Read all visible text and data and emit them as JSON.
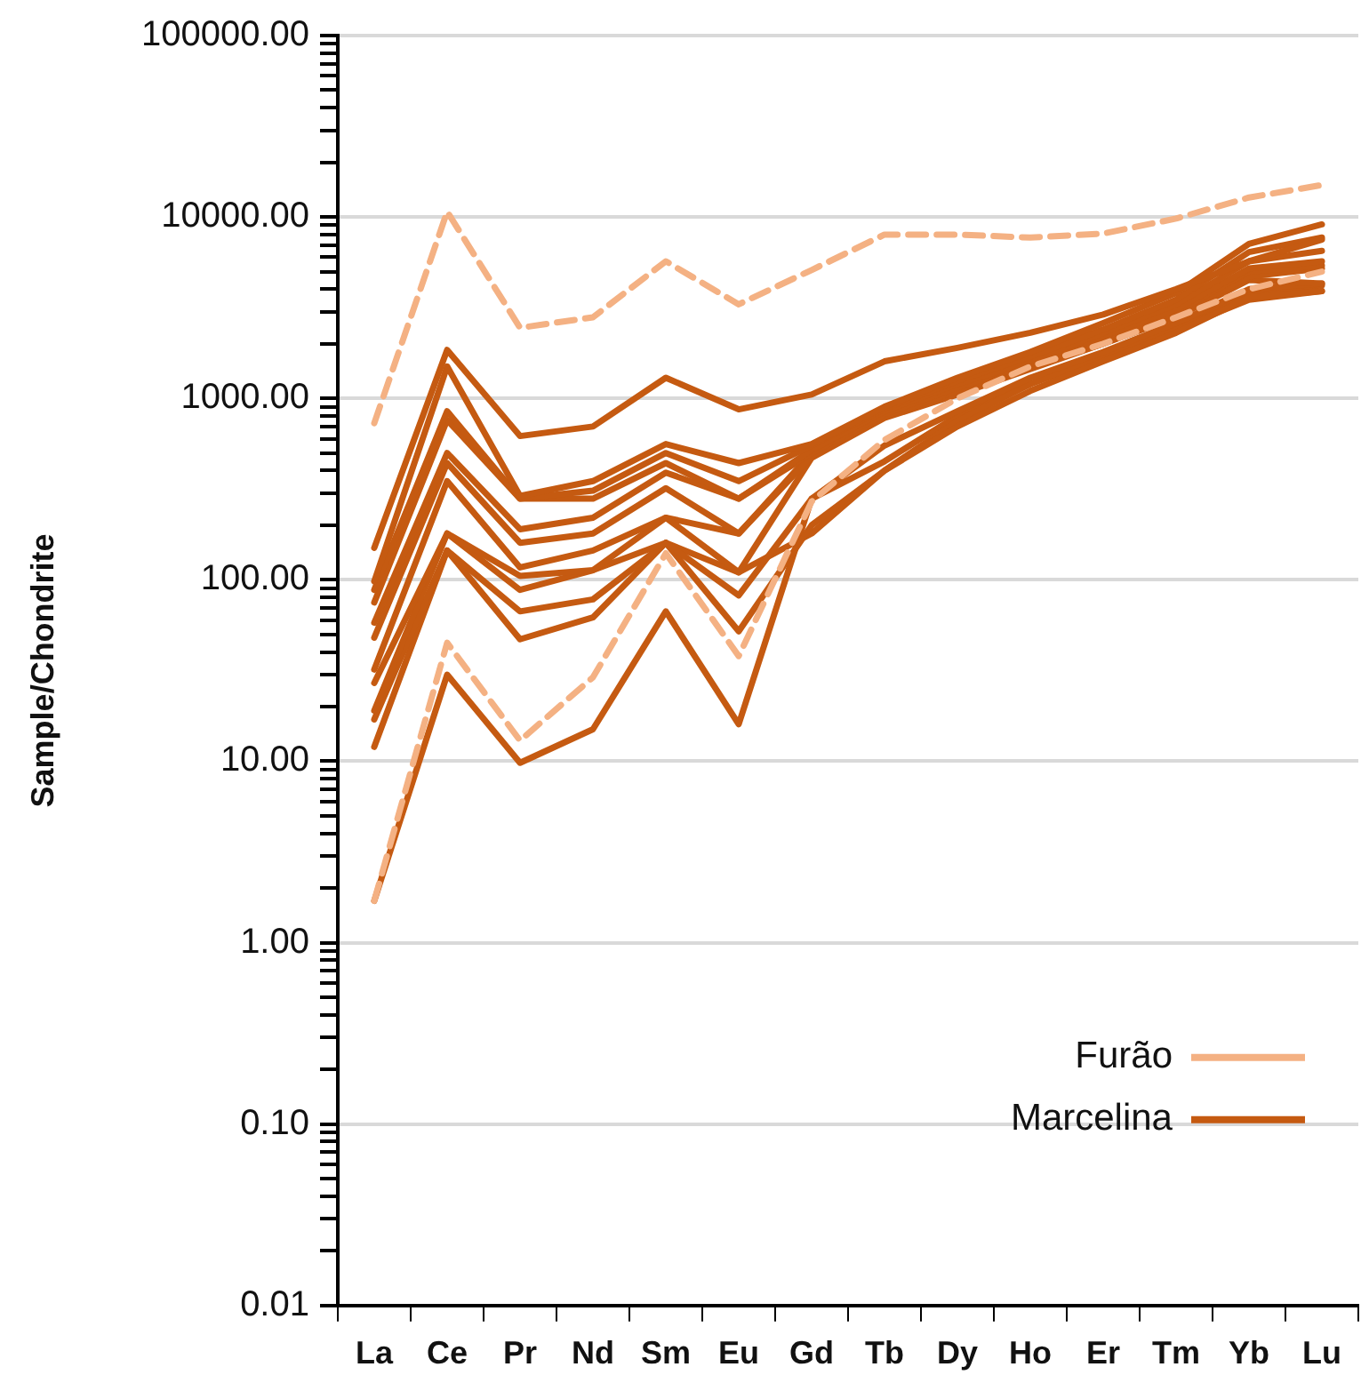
{
  "chart_data": {
    "type": "line",
    "ylabel": "Sample/Chondrite",
    "log": "y",
    "grid": "y",
    "legend": "bottom right",
    "marker": "none",
    "categories": [
      "La",
      "Ce",
      "Pr",
      "Nd",
      "Sm",
      "Eu",
      "Gd",
      "Tb",
      "Dy",
      "Ho",
      "Er",
      "Tm",
      "Yb",
      "Lu"
    ],
    "ylim": [
      0.01,
      100000
    ],
    "yticks": [
      {
        "value": 0.01,
        "label": "0.01"
      },
      {
        "value": 0.02,
        "label": null
      },
      {
        "value": 0.03,
        "label": null
      },
      {
        "value": 0.04,
        "label": null
      },
      {
        "value": 0.05,
        "label": null
      },
      {
        "value": 0.06,
        "label": null
      },
      {
        "value": 0.07,
        "label": null
      },
      {
        "value": 0.08,
        "label": null
      },
      {
        "value": 0.09,
        "label": null
      },
      {
        "value": 0.1,
        "label": "0.10"
      },
      {
        "value": 0.2,
        "label": null
      },
      {
        "value": 0.3,
        "label": null
      },
      {
        "value": 0.4,
        "label": null
      },
      {
        "value": 0.5,
        "label": null
      },
      {
        "value": 0.6,
        "label": null
      },
      {
        "value": 0.7,
        "label": null
      },
      {
        "value": 0.8,
        "label": null
      },
      {
        "value": 0.9,
        "label": null
      },
      {
        "value": 1,
        "label": "1.00"
      },
      {
        "value": 2,
        "label": null
      },
      {
        "value": 3,
        "label": null
      },
      {
        "value": 4,
        "label": null
      },
      {
        "value": 5,
        "label": null
      },
      {
        "value": 6,
        "label": null
      },
      {
        "value": 7,
        "label": null
      },
      {
        "value": 8,
        "label": null
      },
      {
        "value": 9,
        "label": null
      },
      {
        "value": 10,
        "label": "10.00"
      },
      {
        "value": 20,
        "label": null
      },
      {
        "value": 30,
        "label": null
      },
      {
        "value": 40,
        "label": null
      },
      {
        "value": 50,
        "label": null
      },
      {
        "value": 60,
        "label": null
      },
      {
        "value": 70,
        "label": null
      },
      {
        "value": 80,
        "label": null
      },
      {
        "value": 90,
        "label": null
      },
      {
        "value": 100,
        "label": "100.00"
      },
      {
        "value": 200,
        "label": null
      },
      {
        "value": 300,
        "label": null
      },
      {
        "value": 400,
        "label": null
      },
      {
        "value": 500,
        "label": null
      },
      {
        "value": 600,
        "label": null
      },
      {
        "value": 700,
        "label": null
      },
      {
        "value": 800,
        "label": null
      },
      {
        "value": 900,
        "label": null
      },
      {
        "value": 1000,
        "label": "1000.00"
      },
      {
        "value": 2000,
        "label": null
      },
      {
        "value": 3000,
        "label": null
      },
      {
        "value": 4000,
        "label": null
      },
      {
        "value": 5000,
        "label": null
      },
      {
        "value": 6000,
        "label": null
      },
      {
        "value": 7000,
        "label": null
      },
      {
        "value": 8000,
        "label": null
      },
      {
        "value": 9000,
        "label": null
      },
      {
        "value": 10000,
        "label": "10000.00"
      },
      {
        "value": 20000,
        "label": null
      },
      {
        "value": 30000,
        "label": null
      },
      {
        "value": 40000,
        "label": null
      },
      {
        "value": 50000,
        "label": null
      },
      {
        "value": 60000,
        "label": null
      },
      {
        "value": 70000,
        "label": null
      },
      {
        "value": 80000,
        "label": null
      },
      {
        "value": 90000,
        "label": null
      },
      {
        "value": 100000,
        "label": "100000.00"
      }
    ],
    "series": [
      {
        "name": "Furão",
        "color": "#f4b183",
        "line_style": "dashed",
        "values": [
          730,
          10700,
          2450,
          2800,
          5700,
          3300,
          5100,
          8000,
          8000,
          7700,
          8100,
          9800,
          12800,
          15000
        ]
      },
      {
        "color": "#f4b183",
        "line_style": "dashed",
        "values": [
          1.7,
          45,
          13,
          29,
          140,
          38,
          270,
          590,
          1000,
          1500,
          2000,
          2800,
          4000,
          5000
        ]
      },
      {
        "name": "Marcelina",
        "color": "#c55a11",
        "line_style": "solid",
        "values": [
          150,
          1850,
          620,
          700,
          1300,
          870,
          1050,
          1600,
          1900,
          2300,
          2900,
          4000,
          5700,
          7500
        ]
      },
      {
        "color": "#c55a11",
        "line_style": "solid",
        "values": [
          98,
          1500,
          290,
          350,
          560,
          440,
          560,
          900,
          1300,
          1800,
          2600,
          3800,
          7100,
          9100
        ]
      },
      {
        "color": "#c55a11",
        "line_style": "solid",
        "values": [
          88,
          850,
          280,
          310,
          500,
          350,
          550,
          880,
          1250,
          1700,
          2400,
          3500,
          6400,
          7700
        ]
      },
      {
        "color": "#c55a11",
        "line_style": "solid",
        "values": [
          75,
          760,
          280,
          280,
          440,
          280,
          520,
          850,
          1200,
          1600,
          2300,
          3300,
          5700,
          6500
        ]
      },
      {
        "color": "#c55a11",
        "line_style": "solid",
        "values": [
          58,
          500,
          190,
          220,
          390,
          280,
          500,
          820,
          1150,
          1550,
          2200,
          3100,
          5200,
          5700
        ]
      },
      {
        "color": "#c55a11",
        "line_style": "solid",
        "values": [
          48,
          440,
          160,
          180,
          320,
          180,
          480,
          800,
          1100,
          1500,
          2100,
          3000,
          5000,
          5400
        ]
      },
      {
        "color": "#c55a11",
        "line_style": "solid",
        "values": [
          32,
          350,
          117,
          145,
          220,
          110,
          470,
          780,
          1050,
          1450,
          2000,
          2900,
          4700,
          5200
        ]
      },
      {
        "color": "#c55a11",
        "line_style": "solid",
        "values": [
          27,
          180,
          105,
          113,
          220,
          180,
          500,
          800,
          1100,
          1500,
          2000,
          2800,
          4500,
          4300
        ]
      },
      {
        "color": "#c55a11",
        "line_style": "solid",
        "values": [
          19,
          180,
          88,
          113,
          160,
          82,
          280,
          550,
          850,
          1300,
          1800,
          2600,
          4000,
          4300
        ]
      },
      {
        "color": "#c55a11",
        "line_style": "solid",
        "values": [
          17,
          145,
          67,
          78,
          160,
          52,
          200,
          400,
          700,
          1100,
          1600,
          2300,
          3600,
          3900
        ]
      },
      {
        "color": "#c55a11",
        "line_style": "solid",
        "values": [
          12,
          145,
          47,
          62,
          160,
          110,
          180,
          400,
          750,
          1200,
          1700,
          2400,
          3500,
          3900
        ]
      },
      {
        "color": "#c55a11",
        "line_style": "solid",
        "values": [
          1.7,
          30,
          9.8,
          15,
          67,
          16,
          280,
          450,
          800,
          1200,
          1700,
          2500,
          3800,
          4200
        ]
      }
    ]
  }
}
